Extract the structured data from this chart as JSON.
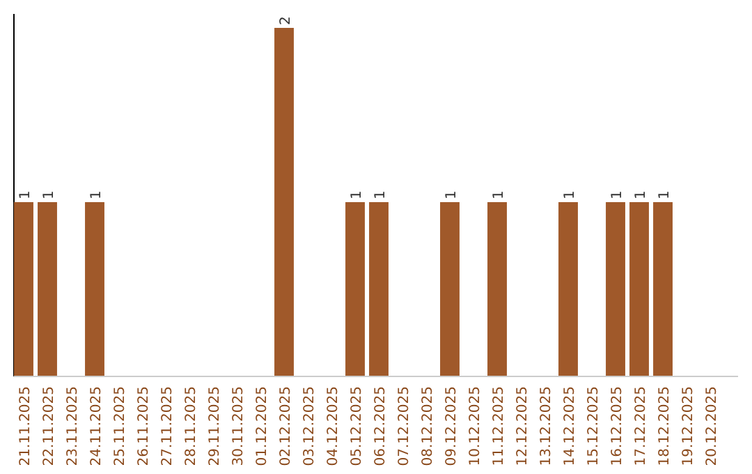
{
  "chart_data": {
    "type": "bar",
    "categories": [
      "21.11.2025",
      "22.11.2025",
      "23.11.2025",
      "24.11.2025",
      "25.11.2025",
      "26.11.2025",
      "27.11.2025",
      "28.11.2025",
      "29.11.2025",
      "30.11.2025",
      "01.12.2025",
      "02.12.2025",
      "03.12.2025",
      "04.12.2025",
      "05.12.2025",
      "06.12.2025",
      "07.12.2025",
      "08.12.2025",
      "09.12.2025",
      "10.12.2025",
      "11.12.2025",
      "12.12.2025",
      "13.12.2025",
      "14.12.2025",
      "15.12.2025",
      "16.12.2025",
      "17.12.2025",
      "18.12.2025",
      "19.12.2025",
      "20.12.2025"
    ],
    "values": [
      1,
      1,
      0,
      1,
      0,
      0,
      0,
      0,
      0,
      0,
      0,
      2,
      0,
      0,
      1,
      1,
      0,
      0,
      1,
      0,
      1,
      0,
      0,
      1,
      0,
      1,
      1,
      1,
      0,
      0
    ],
    "value_labels": [
      "1",
      "1",
      null,
      "1",
      null,
      null,
      null,
      null,
      null,
      null,
      null,
      "2",
      null,
      null,
      "1",
      "1",
      null,
      null,
      "1",
      null,
      "1",
      null,
      null,
      "1",
      null,
      "1",
      "1",
      "1",
      null,
      null
    ],
    "color": "#a0592a",
    "ylim": [
      0,
      2.08
    ],
    "tick_labels": "x"
  }
}
